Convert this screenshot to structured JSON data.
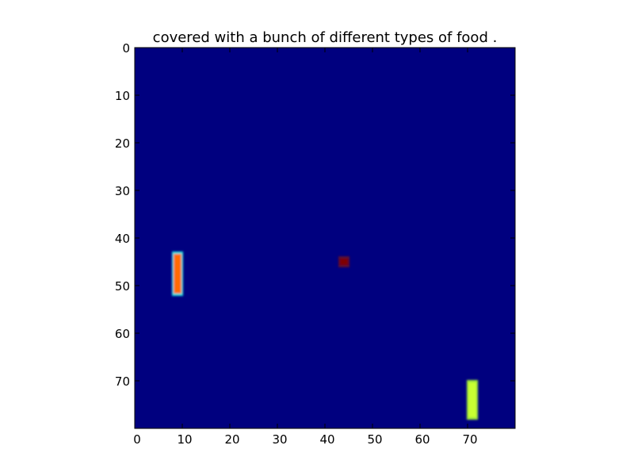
{
  "chart_data": {
    "type": "heatmap",
    "title": "covered with a bunch of different types of food .",
    "xlabel": "",
    "ylabel": "",
    "xlim": [
      0,
      80
    ],
    "ylim": [
      80,
      0
    ],
    "x_ticks": [
      0,
      10,
      20,
      30,
      40,
      50,
      60,
      70
    ],
    "y_ticks": [
      0,
      10,
      20,
      30,
      40,
      50,
      60,
      70
    ],
    "grid": false,
    "colormap": "jet",
    "background_color": "#00007f",
    "blobs": [
      {
        "name": "",
        "x0": 8,
        "x1": 10,
        "y0": 43,
        "y1": 52,
        "fill": "#ff6a00",
        "edge": "#1fe0e0",
        "intensity": 0.8
      },
      {
        "name": "",
        "x0": 43,
        "x1": 45,
        "y0": 44,
        "y1": 46,
        "fill": "#7f0000",
        "edge": "#5a1030",
        "intensity": 1.0
      },
      {
        "name": "",
        "x0": 70,
        "x1": 72,
        "y0": 70,
        "y1": 78,
        "fill": "#c8ff30",
        "edge": "#9fe83a",
        "intensity": 0.65
      }
    ]
  }
}
